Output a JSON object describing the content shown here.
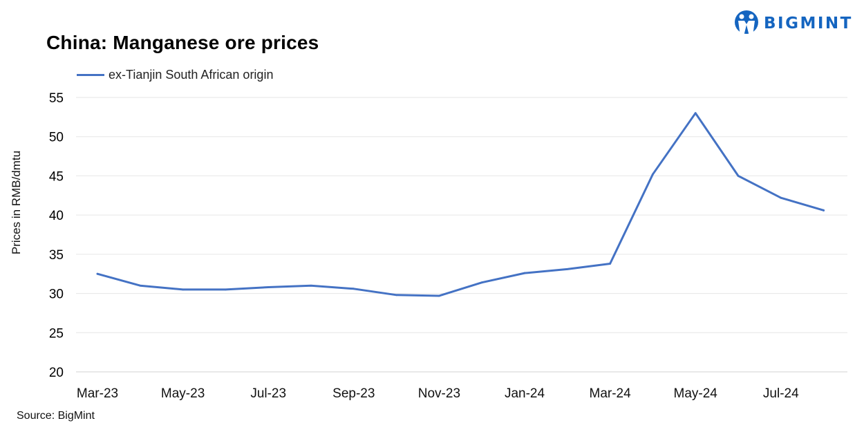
{
  "brand": {
    "name": "BIGMINT",
    "color": "#1565c0"
  },
  "chart_data": {
    "type": "line",
    "title": "China: Manganese ore prices",
    "ylabel": "Prices in RMB/dmtu",
    "xlabel": "",
    "ylim": [
      20,
      55
    ],
    "yticks": [
      "20",
      "25",
      "30",
      "35",
      "40",
      "45",
      "50",
      "55"
    ],
    "x": [
      "Mar-23",
      "Apr-23",
      "May-23",
      "Jun-23",
      "Jul-23",
      "Aug-23",
      "Sep-23",
      "Oct-23",
      "Nov-23",
      "Dec-23",
      "Jan-24",
      "Feb-24",
      "Mar-24",
      "Apr-24",
      "May-24",
      "Jun-24",
      "Jul-24",
      "Aug-24"
    ],
    "xtick_labels": [
      "Mar-23",
      "May-23",
      "Jul-23",
      "Sep-23",
      "Nov-23",
      "Jan-24",
      "Mar-24",
      "May-24",
      "Jul-24"
    ],
    "grid": true,
    "legend": "top-left",
    "series": [
      {
        "name": "ex-Tianjin South African origin",
        "color": "#4472c4",
        "values": [
          32.5,
          31.0,
          30.5,
          30.5,
          30.8,
          31.0,
          30.6,
          29.8,
          29.7,
          31.4,
          32.6,
          33.1,
          33.8,
          45.2,
          53.0,
          45.0,
          42.2,
          40.6
        ]
      }
    ]
  },
  "source": "Source:  BigMint"
}
